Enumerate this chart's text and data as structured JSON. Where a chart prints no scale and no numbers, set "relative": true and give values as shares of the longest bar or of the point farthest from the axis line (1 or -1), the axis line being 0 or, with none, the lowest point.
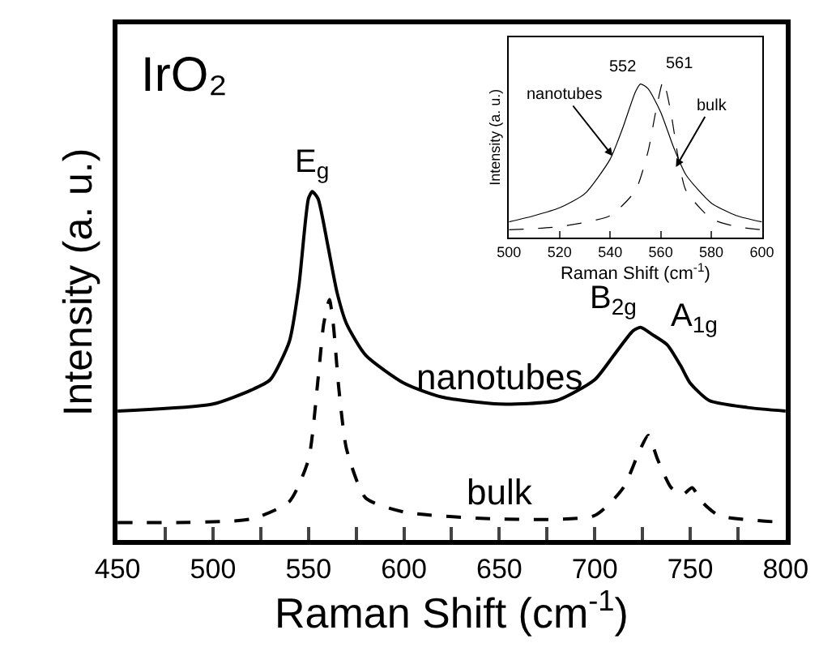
{
  "chart_data": [
    {
      "type": "line",
      "title": "IrO₂",
      "xlabel": "Raman Shift (cm$^{-1}$)",
      "ylabel": "Intensity (a. u.)",
      "relative": true,
      "xlim": [
        450,
        800
      ],
      "xticks": [
        450,
        {
          "value": 475,
          "label": null
        },
        500,
        {
          "value": 525,
          "label": null
        },
        550,
        {
          "value": 575,
          "label": null
        },
        600,
        {
          "value": 625,
          "label": null
        },
        650,
        {
          "value": 675,
          "label": null
        },
        700,
        {
          "value": 725,
          "label": null
        },
        750,
        {
          "value": 775,
          "label": null
        },
        800
      ],
      "grid": false,
      "legend": false,
      "marker": "none",
      "series": [
        {
          "name": "nanotubes",
          "color": "#000000",
          "line_style": "solid",
          "x": [
            450,
            500,
            520,
            530,
            540,
            545,
            550,
            552,
            555,
            560,
            565,
            570,
            580,
            600,
            620,
            650,
            680,
            700,
            710,
            720,
            724,
            730,
            738,
            745,
            750,
            760,
            780,
            800
          ],
          "values": [
            0.37,
            0.39,
            0.43,
            0.46,
            0.57,
            0.73,
            0.98,
            1.0,
            0.98,
            0.85,
            0.71,
            0.62,
            0.53,
            0.45,
            0.41,
            0.39,
            0.4,
            0.46,
            0.53,
            0.6,
            0.61,
            0.59,
            0.56,
            0.5,
            0.45,
            0.4,
            0.38,
            0.37
          ]
        },
        {
          "name": "bulk",
          "color": "#000000",
          "line_style": "dashed",
          "x": [
            450,
            520,
            540,
            550,
            555,
            558,
            561,
            563,
            566,
            570,
            580,
            600,
            650,
            700,
            715,
            723,
            728,
            733,
            740,
            746,
            751,
            756,
            765,
            800
          ],
          "values": [
            0.05,
            0.06,
            0.11,
            0.23,
            0.46,
            0.62,
            0.69,
            0.62,
            0.43,
            0.26,
            0.12,
            0.08,
            0.06,
            0.07,
            0.15,
            0.25,
            0.3,
            0.23,
            0.15,
            0.13,
            0.15,
            0.11,
            0.07,
            0.05
          ]
        }
      ],
      "annotations": [
        {
          "text": "E$_{g}$",
          "x": 552,
          "y": 1.0
        },
        {
          "text": "B$_{2g}$",
          "x": 724,
          "y": 0.61
        },
        {
          "text": "A$_{1g}$",
          "x": 738,
          "y": 0.56
        }
      ]
    },
    {
      "type": "line",
      "xlabel": "Raman Shift (cm$^{-1}$)",
      "ylabel": "Intensity (a. u.)",
      "relative": true,
      "xlim": [
        500,
        600
      ],
      "xticks": [
        500,
        520,
        540,
        560,
        580,
        600
      ],
      "grid": false,
      "legend": false,
      "marker": "none",
      "series": [
        {
          "color": "#000000",
          "line_style": "solid",
          "x": [
            500,
            510,
            520,
            530,
            540,
            545,
            550,
            552,
            555,
            560,
            565,
            570,
            580,
            590,
            600
          ],
          "values": [
            0.1,
            0.14,
            0.19,
            0.28,
            0.5,
            0.7,
            0.93,
            0.98,
            0.95,
            0.8,
            0.58,
            0.4,
            0.22,
            0.14,
            0.1
          ]
        },
        {
          "color": "#000000",
          "line_style": "dashed",
          "x": [
            500,
            520,
            540,
            550,
            555,
            558,
            561,
            564,
            567,
            570,
            580,
            590,
            600
          ],
          "values": [
            0.05,
            0.07,
            0.14,
            0.3,
            0.55,
            0.8,
            1.0,
            0.8,
            0.5,
            0.3,
            0.12,
            0.07,
            0.05
          ]
        }
      ],
      "annotations": [
        {
          "text": "552",
          "x": 552,
          "y": 0.98
        },
        {
          "text": "561",
          "x": 561,
          "y": 1.0
        },
        {
          "text": "nanotubes",
          "x": 541,
          "y": 0.52
        },
        {
          "text": "bulk",
          "x": 566,
          "y": 0.45
        }
      ]
    }
  ]
}
